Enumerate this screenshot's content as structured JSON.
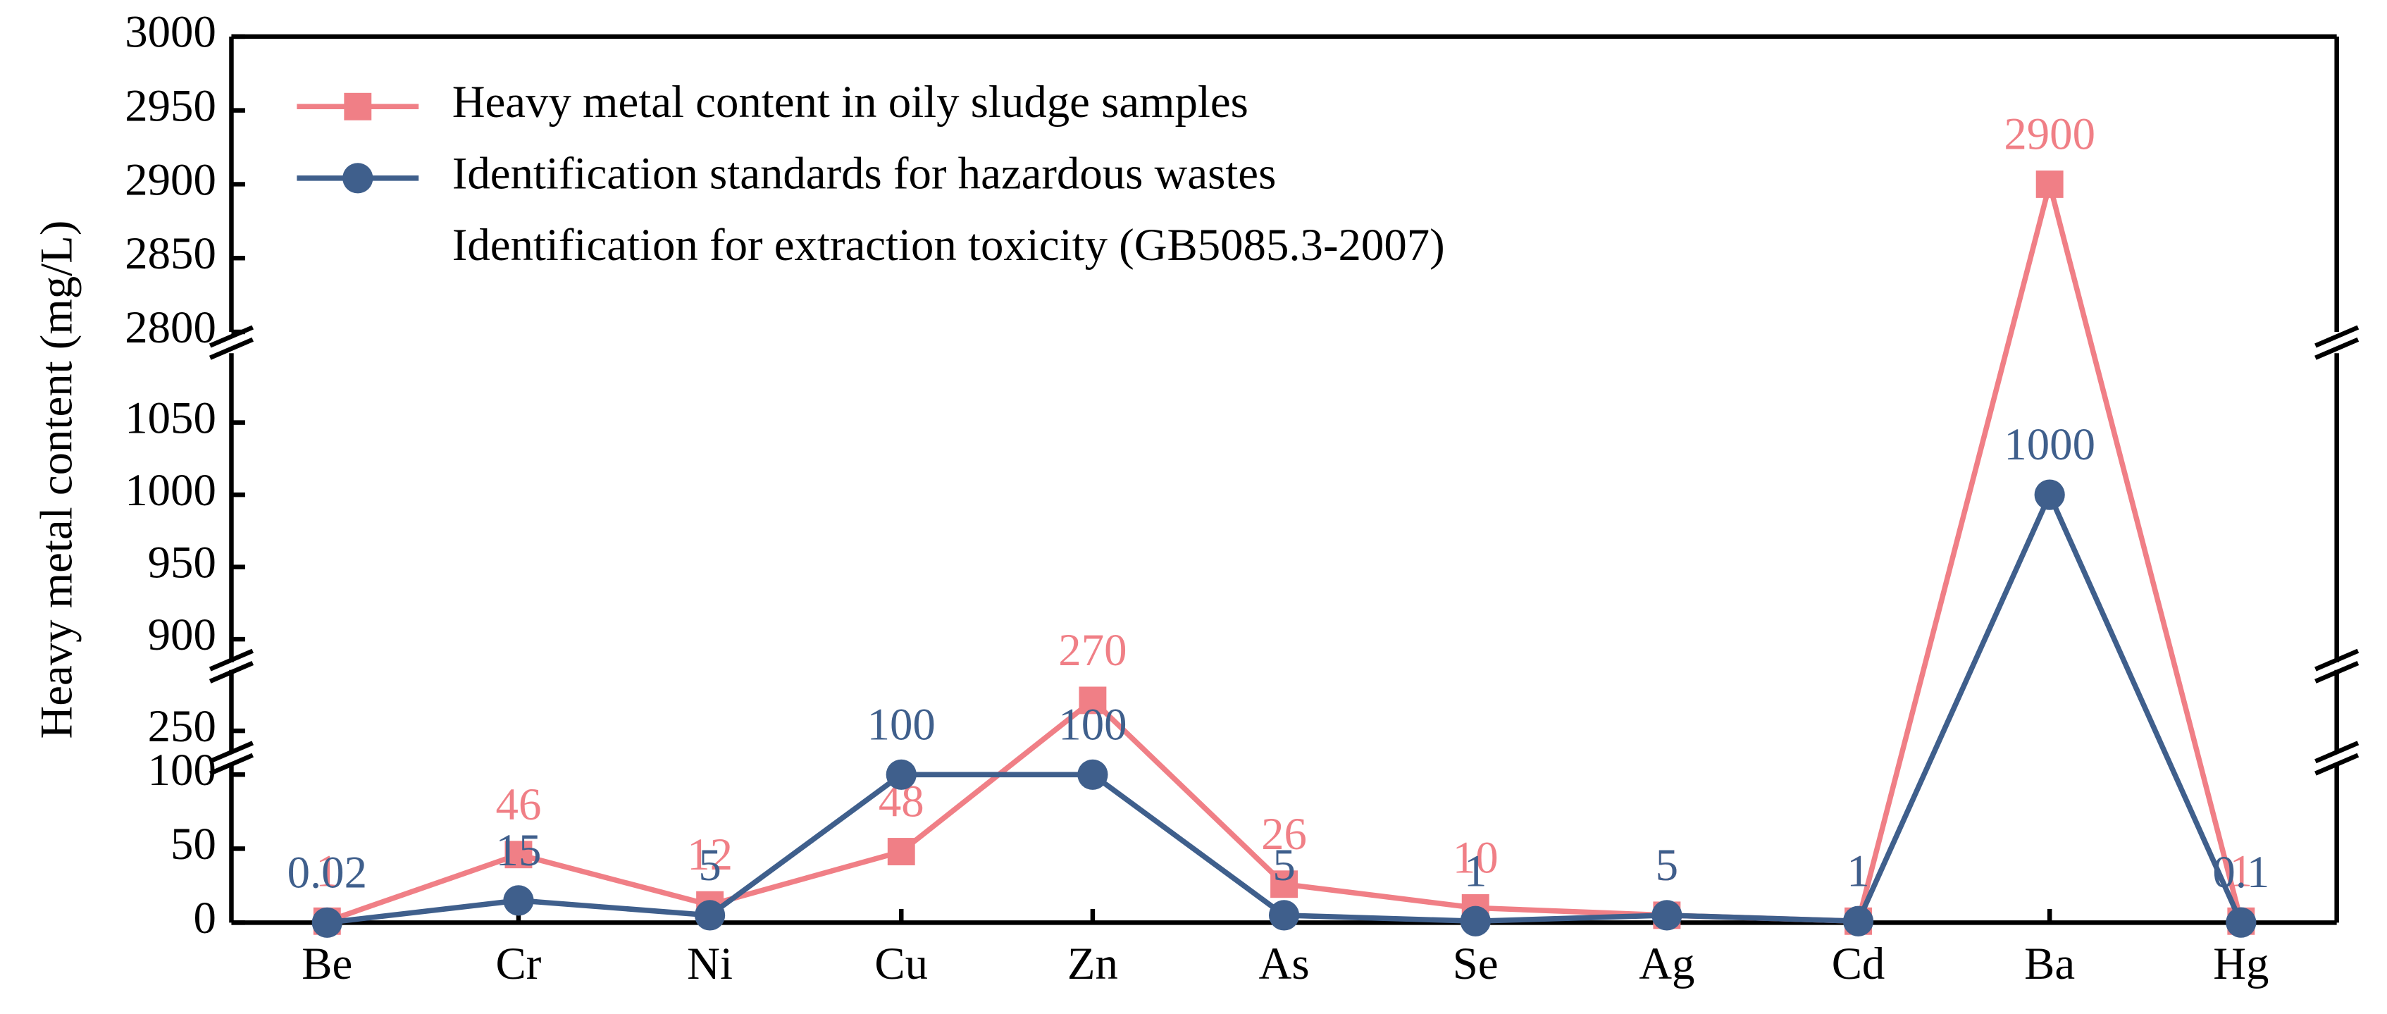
{
  "chart_data": {
    "type": "line",
    "y_label": "Heavy metal content (mg/L)",
    "legend_subtitle": "Identification for extraction toxicity (GB5085.3-2007)",
    "categories": [
      "Be",
      "Cr",
      "Ni",
      "Cu",
      "Zn",
      "As",
      "Se",
      "Ag",
      "Cd",
      "Ba",
      "Hg"
    ],
    "series": [
      {
        "name": "Heavy metal content in oily sludge samples",
        "color": "#f07f86",
        "marker": "square",
        "values": [
          1,
          46,
          12,
          48,
          270,
          26,
          10,
          5,
          1,
          2900,
          1
        ]
      },
      {
        "name": "Identification standards for hazardous wastes",
        "color": "#3f5f8c",
        "marker": "circle",
        "values": [
          0.02,
          15,
          5,
          100,
          100,
          5,
          1,
          5,
          1,
          1000,
          0.1
        ]
      }
    ],
    "y_segments": [
      {
        "ylim": [
          0,
          108
        ],
        "yticks": [
          0,
          50,
          100
        ]
      },
      {
        "ylim": [
          235,
          290
        ],
        "yticks": [
          250
        ]
      },
      {
        "ylim": [
          884,
          1098
        ],
        "yticks": [
          900,
          950,
          1000,
          1050
        ]
      },
      {
        "ylim": [
          2800,
          3000
        ],
        "yticks": [
          2800,
          2850,
          2900,
          2950,
          3000
        ]
      }
    ]
  }
}
